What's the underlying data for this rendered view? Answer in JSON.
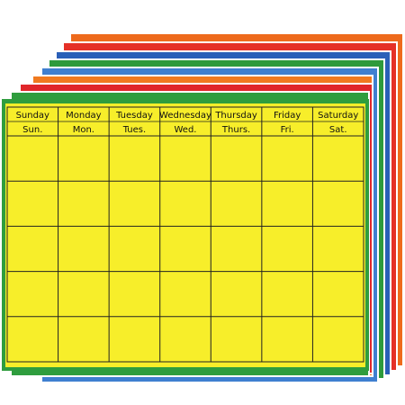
{
  "calendar": {
    "days": [
      "Sunday",
      "Monday",
      "Tuesday",
      "Wednesday",
      "Thursday",
      "Friday",
      "Saturday"
    ],
    "abbreviations": [
      "Sun.",
      "Mon.",
      "Tues.",
      "Wed.",
      "Thurs.",
      "Fri.",
      "Sat."
    ]
  }
}
